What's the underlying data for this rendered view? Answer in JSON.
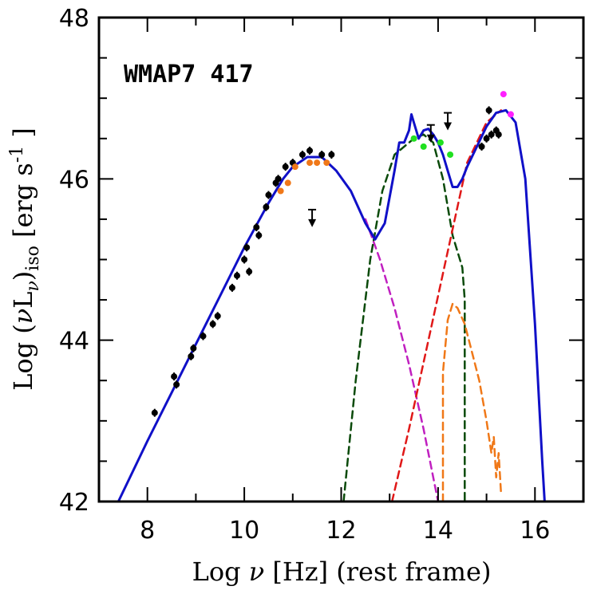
{
  "chart_data": {
    "type": "scatter",
    "title": "",
    "annotation": "WMAP7 417",
    "xlabel_parts": [
      "Log ",
      "ν",
      " [Hz] (rest frame)"
    ],
    "ylabel_parts": [
      "Log (",
      "ν",
      "L",
      "ν",
      ")",
      "iso",
      " [erg s",
      "-1",
      " ]"
    ],
    "xlim": [
      7,
      17
    ],
    "ylim": [
      42,
      48
    ],
    "x_ticks": [
      8,
      10,
      12,
      14,
      16
    ],
    "x_tick_labels": [
      "8",
      "10",
      "12",
      "14",
      "16"
    ],
    "y_ticks": [
      42,
      44,
      46,
      48
    ],
    "y_tick_labels": [
      "42",
      "44",
      "46",
      "48"
    ],
    "grid": false,
    "colors": {
      "total_model": "#1010c8",
      "synchrotron": "#c020c0",
      "disk_torus": "#0a4a0a",
      "external_compton": "#e01818",
      "host_or_template": "#f07818",
      "data_black": "#000000",
      "data_orange": "#f07818",
      "data_green": "#20e020",
      "data_magenta": "#ff20ff"
    },
    "series": [
      {
        "role": "total_model",
        "style": "solid",
        "x": [
          7.4,
          8.0,
          8.5,
          9.0,
          9.5,
          10.0,
          10.5,
          10.8,
          11.0,
          11.3,
          11.6,
          11.9,
          12.2,
          12.5,
          12.7,
          12.9,
          13.1,
          13.2,
          13.3,
          13.4,
          13.45,
          13.5,
          13.6,
          13.7,
          13.8,
          13.9,
          14.0,
          14.1,
          14.2,
          14.3,
          14.4,
          14.5,
          14.6,
          14.8,
          15.0,
          15.2,
          15.4,
          15.6,
          15.8,
          16.0,
          16.15,
          16.2
        ],
        "y": [
          42.0,
          42.75,
          43.35,
          43.95,
          44.55,
          45.15,
          45.7,
          46.0,
          46.15,
          46.27,
          46.27,
          46.1,
          45.85,
          45.45,
          45.25,
          45.45,
          46.1,
          46.45,
          46.45,
          46.6,
          46.8,
          46.7,
          46.5,
          46.6,
          46.62,
          46.55,
          46.45,
          46.3,
          46.1,
          45.9,
          45.9,
          46.0,
          46.15,
          46.4,
          46.65,
          46.82,
          46.85,
          46.7,
          46.0,
          44.2,
          42.5,
          42.0
        ]
      },
      {
        "role": "synchrotron",
        "style": "dashed",
        "x": [
          12.5,
          12.8,
          13.1,
          13.4,
          13.7,
          14.0
        ],
        "y": [
          45.5,
          45.0,
          44.4,
          43.7,
          42.9,
          42.0
        ]
      },
      {
        "role": "disk_torus",
        "style": "dashed",
        "x": [
          12.05,
          12.3,
          12.6,
          12.85,
          13.1,
          13.3,
          13.5,
          13.7,
          13.9,
          14.1,
          14.3,
          14.5,
          14.55,
          14.55
        ],
        "y": [
          42.0,
          43.5,
          45.0,
          45.85,
          46.3,
          46.4,
          46.5,
          46.55,
          46.45,
          46.0,
          45.3,
          44.9,
          44.5,
          42.0
        ]
      },
      {
        "role": "external_compton",
        "style": "dashed",
        "x": [
          13.05,
          13.4,
          13.8,
          14.2,
          14.6,
          15.0,
          15.3
        ],
        "y": [
          42.0,
          42.9,
          44.0,
          45.1,
          46.2,
          46.7,
          46.85
        ]
      },
      {
        "role": "host_or_template",
        "style": "dashed",
        "x": [
          14.1,
          14.1,
          14.2,
          14.3,
          14.4,
          14.55,
          14.7,
          14.85,
          15.0,
          15.1,
          15.15,
          15.2,
          15.25,
          15.3
        ],
        "y": [
          42.0,
          43.6,
          44.25,
          44.45,
          44.4,
          44.2,
          43.85,
          43.5,
          43.0,
          42.6,
          42.8,
          42.3,
          42.6,
          42.1
        ]
      }
    ],
    "data_points": [
      {
        "x": 8.15,
        "y": 43.1,
        "color": "black"
      },
      {
        "x": 8.55,
        "y": 43.55,
        "color": "black"
      },
      {
        "x": 8.6,
        "y": 43.45,
        "color": "black"
      },
      {
        "x": 8.9,
        "y": 43.8,
        "color": "black"
      },
      {
        "x": 8.95,
        "y": 43.9,
        "color": "black"
      },
      {
        "x": 9.15,
        "y": 44.05,
        "color": "black"
      },
      {
        "x": 9.35,
        "y": 44.2,
        "color": "black"
      },
      {
        "x": 9.45,
        "y": 44.3,
        "color": "black"
      },
      {
        "x": 9.75,
        "y": 44.65,
        "color": "black"
      },
      {
        "x": 9.85,
        "y": 44.8,
        "color": "black"
      },
      {
        "x": 10.0,
        "y": 45.0,
        "color": "black"
      },
      {
        "x": 10.05,
        "y": 45.15,
        "color": "black"
      },
      {
        "x": 10.1,
        "y": 44.85,
        "color": "black"
      },
      {
        "x": 10.25,
        "y": 45.4,
        "color": "black"
      },
      {
        "x": 10.3,
        "y": 45.3,
        "color": "black"
      },
      {
        "x": 10.45,
        "y": 45.65,
        "color": "black"
      },
      {
        "x": 10.5,
        "y": 45.8,
        "color": "black"
      },
      {
        "x": 10.65,
        "y": 45.95,
        "color": "black"
      },
      {
        "x": 10.7,
        "y": 46.0,
        "color": "black"
      },
      {
        "x": 10.85,
        "y": 46.15,
        "color": "black"
      },
      {
        "x": 11.0,
        "y": 46.2,
        "color": "black"
      },
      {
        "x": 11.2,
        "y": 46.3,
        "color": "black"
      },
      {
        "x": 11.35,
        "y": 46.35,
        "color": "black"
      },
      {
        "x": 11.6,
        "y": 46.3,
        "color": "black"
      },
      {
        "x": 11.8,
        "y": 46.3,
        "color": "black"
      },
      {
        "x": 14.9,
        "y": 46.4,
        "color": "black"
      },
      {
        "x": 15.0,
        "y": 46.5,
        "color": "black"
      },
      {
        "x": 15.05,
        "y": 46.85,
        "color": "black"
      },
      {
        "x": 15.1,
        "y": 46.55,
        "color": "black"
      },
      {
        "x": 15.2,
        "y": 46.6,
        "color": "black"
      },
      {
        "x": 15.25,
        "y": 46.55,
        "color": "black"
      },
      {
        "x": 10.75,
        "y": 45.85,
        "color": "orange"
      },
      {
        "x": 10.9,
        "y": 45.95,
        "color": "orange"
      },
      {
        "x": 11.05,
        "y": 46.15,
        "color": "orange"
      },
      {
        "x": 11.35,
        "y": 46.2,
        "color": "orange"
      },
      {
        "x": 11.5,
        "y": 46.2,
        "color": "orange"
      },
      {
        "x": 11.7,
        "y": 46.2,
        "color": "orange"
      },
      {
        "x": 13.5,
        "y": 46.5,
        "color": "green"
      },
      {
        "x": 13.7,
        "y": 46.4,
        "color": "green"
      },
      {
        "x": 14.05,
        "y": 46.45,
        "color": "green"
      },
      {
        "x": 14.25,
        "y": 46.3,
        "color": "green"
      },
      {
        "x": 15.35,
        "y": 47.05,
        "color": "magenta"
      },
      {
        "x": 15.5,
        "y": 46.8,
        "color": "magenta"
      }
    ],
    "upper_limits": [
      {
        "x": 11.4,
        "y": 45.5
      },
      {
        "x": 13.85,
        "y": 46.55
      },
      {
        "x": 14.2,
        "y": 46.7
      }
    ]
  }
}
